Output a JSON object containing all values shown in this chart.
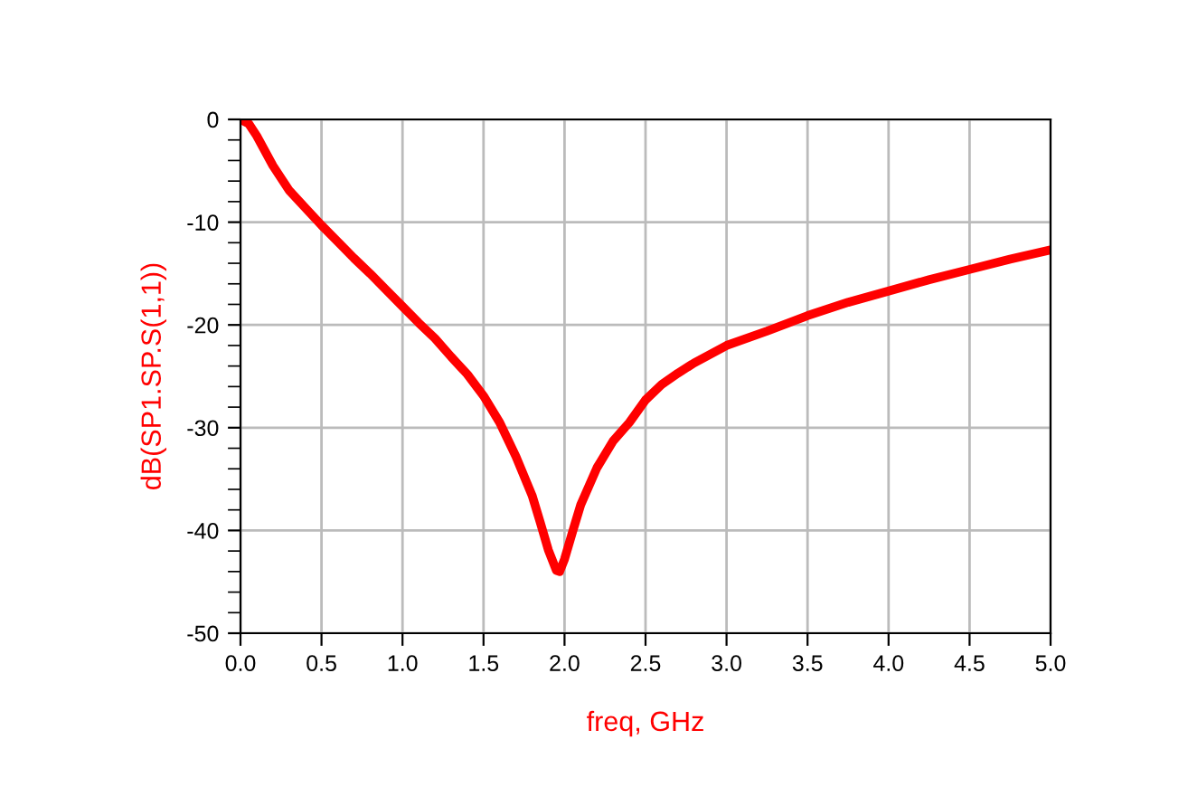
{
  "chart_data": {
    "type": "line",
    "xlabel": "freq, GHz",
    "ylabel": "dB(SP1.SP.S(1,1))",
    "x": [
      0,
      0.05,
      0.1,
      0.2,
      0.3,
      0.4,
      0.5,
      0.6,
      0.7,
      0.8,
      0.9,
      1.0,
      1.1,
      1.2,
      1.3,
      1.4,
      1.5,
      1.6,
      1.7,
      1.8,
      1.85,
      1.9,
      1.95,
      1.97,
      2.0,
      2.05,
      2.1,
      2.2,
      2.3,
      2.4,
      2.5,
      2.6,
      2.7,
      2.8,
      3.0,
      3.25,
      3.5,
      3.75,
      4.0,
      4.25,
      4.5,
      4.75,
      5.0
    ],
    "series": [
      {
        "color": "#ff0000",
        "values": [
          0,
          -0.4,
          -1.6,
          -4.5,
          -6.9,
          -8.6,
          -10.3,
          -11.9,
          -13.5,
          -15,
          -16.6,
          -18.2,
          -19.8,
          -21.3,
          -23.1,
          -24.8,
          -26.9,
          -29.5,
          -32.8,
          -36.6,
          -39.2,
          -41.9,
          -43.9,
          -44,
          -42.8,
          -40.1,
          -37.5,
          -33.9,
          -31.3,
          -29.5,
          -27.3,
          -25.8,
          -24.7,
          -23.7,
          -22.0,
          -20.6,
          -19.1,
          -17.8,
          -16.7,
          -15.6,
          -14.6,
          -13.6,
          -12.7
        ]
      }
    ],
    "xlim": [
      0,
      5
    ],
    "ylim": [
      -50,
      0
    ],
    "xticks": [
      {
        "value": 0,
        "label": "0.0"
      },
      {
        "value": 0.5,
        "label": "0.5"
      },
      {
        "value": 1,
        "label": "1.0"
      },
      {
        "value": 1.5,
        "label": "1.5"
      },
      {
        "value": 2,
        "label": "2.0"
      },
      {
        "value": 2.5,
        "label": "2.5"
      },
      {
        "value": 3,
        "label": "3.0"
      },
      {
        "value": 3.5,
        "label": "3.5"
      },
      {
        "value": 4,
        "label": "4.0"
      },
      {
        "value": 4.5,
        "label": "4.5"
      },
      {
        "value": 5,
        "label": "5.0"
      }
    ],
    "yticks": [
      -50,
      -40,
      -30,
      -20,
      -10,
      0
    ],
    "grid": true,
    "legend": false,
    "marker": "none",
    "line_style": "solid"
  }
}
